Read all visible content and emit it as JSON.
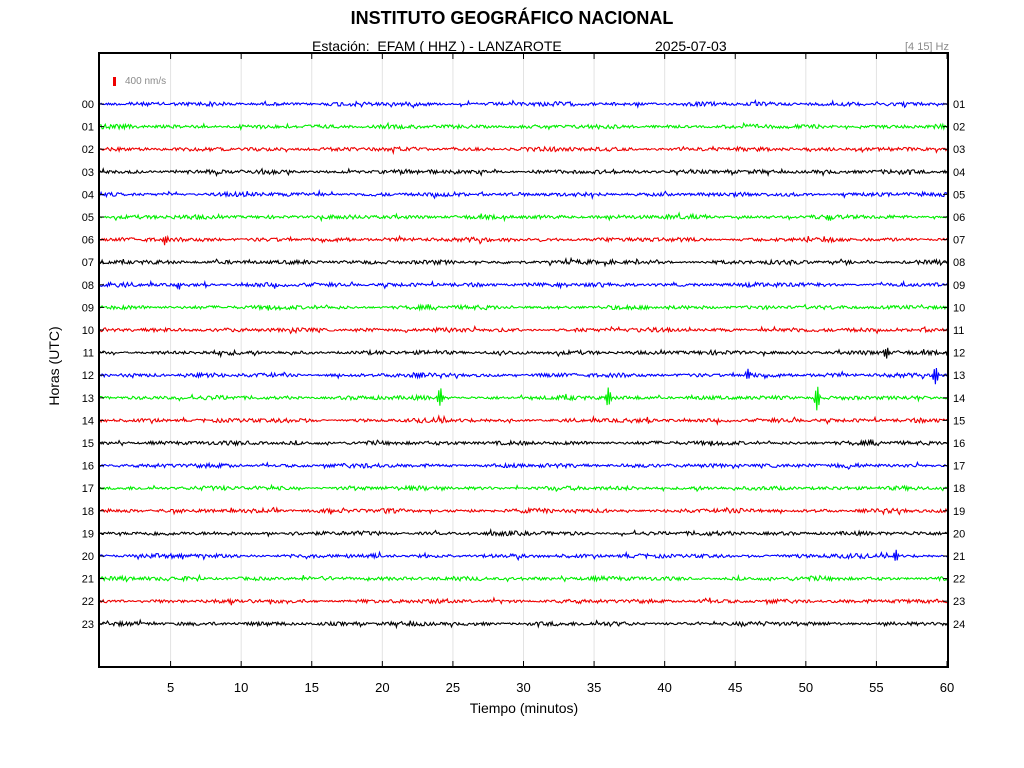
{
  "header": {
    "title": "INSTITUTO GEOGRÁFICO NACIONAL",
    "station": "Estación:  EFAM ( HHZ ) - LANZAROTE",
    "date": "2025-07-03",
    "filter": "[4 15] Hz",
    "scale_label": "400 nm/s"
  },
  "colors": {
    "blue": "#0000ff",
    "green": "#00ee00",
    "red": "#ee0000",
    "black": "#000000",
    "scale": "#ee0000"
  },
  "chart_data": {
    "type": "line",
    "xlabel": "Tiempo (minutos)",
    "ylabel": "Horas (UTC)",
    "xlim": [
      0,
      60
    ],
    "xticks": [
      5,
      10,
      15,
      20,
      25,
      30,
      35,
      40,
      45,
      50,
      55,
      60
    ],
    "grid": "vertical",
    "left_tick_labels": [
      "00",
      "01",
      "02",
      "03",
      "04",
      "05",
      "06",
      "07",
      "08",
      "09",
      "10",
      "11",
      "12",
      "13",
      "14",
      "15",
      "16",
      "17",
      "18",
      "19",
      "20",
      "21",
      "22",
      "23"
    ],
    "right_tick_labels": [
      "01",
      "02",
      "03",
      "04",
      "05",
      "06",
      "07",
      "08",
      "09",
      "10",
      "11",
      "12",
      "13",
      "14",
      "15",
      "16",
      "17",
      "18",
      "19",
      "20",
      "21",
      "22",
      "23",
      "24"
    ],
    "series_colors": [
      "blue",
      "green",
      "red",
      "black",
      "blue",
      "green",
      "red",
      "black",
      "blue",
      "green",
      "red",
      "black",
      "blue",
      "green",
      "red",
      "black",
      "blue",
      "green",
      "red",
      "black",
      "blue",
      "green",
      "red",
      "black"
    ],
    "events": [
      {
        "hour": 6,
        "minute": 4.6,
        "amplitude": 6
      },
      {
        "hour": 8,
        "minute": 5.6,
        "amplitude": 4
      },
      {
        "hour": 11,
        "minute": 55.7,
        "amplitude": 5
      },
      {
        "hour": 12,
        "minute": 45.9,
        "amplitude": 5
      },
      {
        "hour": 12,
        "minute": 59.2,
        "amplitude": 10
      },
      {
        "hour": 13,
        "minute": 24.1,
        "amplitude": 10
      },
      {
        "hour": 13,
        "minute": 36.0,
        "amplitude": 10
      },
      {
        "hour": 13,
        "minute": 50.8,
        "amplitude": 13
      },
      {
        "hour": 20,
        "minute": 56.4,
        "amplitude": 6
      }
    ]
  }
}
